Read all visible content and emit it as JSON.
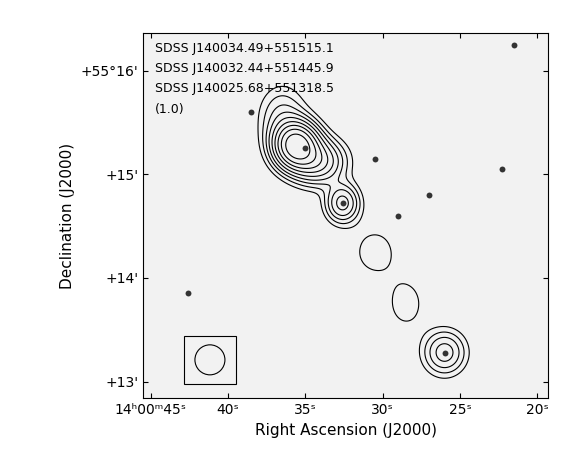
{
  "chart_data": {
    "type": "contour",
    "annotations": [
      "SDSS J140034.49+551515.1",
      "SDSS J140032.44+551445.9",
      "SDSS J140025.68+551318.5",
      "(1.0)"
    ],
    "x_label": "Right Ascension (J2000)",
    "y_label": "Declination (J2000)",
    "xlim": [
      45.5,
      19.3
    ],
    "xticks": [
      {
        "value": 45,
        "label": "14ʰ00ᵐ45ˢ"
      },
      {
        "value": 40,
        "label": "40ˢ"
      },
      {
        "value": 35,
        "label": "35ˢ"
      },
      {
        "value": 30,
        "label": "30ˢ"
      },
      {
        "value": 25,
        "label": "25ˢ"
      },
      {
        "value": 20,
        "label": "20ˢ"
      }
    ],
    "ylim": [
      12.84,
      16.36
    ],
    "yticks": [
      {
        "value": 13,
        "label": "+13'"
      },
      {
        "value": 14,
        "label": "+14'"
      },
      {
        "value": 15,
        "label": "+15'"
      },
      {
        "value": 16,
        "label": "+55°16'"
      }
    ],
    "components": [
      {
        "x": 35.6,
        "y": 15.28,
        "amp": 10,
        "sigma_x": 0.9,
        "sigma_y": 0.14
      },
      {
        "x": 34.2,
        "y": 15.12,
        "amp": 4,
        "sigma_x": 1.1,
        "sigma_y": 0.14
      },
      {
        "x": 36.5,
        "y": 15.55,
        "amp": 1.5,
        "sigma_x": 1.0,
        "sigma_y": 0.2
      },
      {
        "x": 32.6,
        "y": 14.72,
        "amp": 3.2,
        "sigma_x": 0.7,
        "sigma_y": 0.12
      },
      {
        "x": 30.5,
        "y": 14.25,
        "amp": 0.7,
        "sigma_x": 1.2,
        "sigma_y": 0.2
      },
      {
        "x": 28.5,
        "y": 13.75,
        "amp": 0.7,
        "sigma_x": 1.0,
        "sigma_y": 0.2
      },
      {
        "x": 26.0,
        "y": 13.28,
        "amp": 2.4,
        "sigma_x": 0.9,
        "sigma_y": 0.14
      }
    ],
    "levels": [
      0.5,
      0.9,
      1.4,
      2.0,
      2.8,
      3.8,
      5.0,
      6.5,
      8.5
    ],
    "stars": {
      "x": [
        30.5,
        42.6,
        35.0,
        32.6,
        26.0,
        22.3,
        27.0,
        21.5,
        38.5,
        29.0
      ],
      "y": [
        15.15,
        13.85,
        15.25,
        14.72,
        13.28,
        15.05,
        14.8,
        16.25,
        15.6,
        14.6
      ]
    },
    "color": "#000000",
    "grid": false
  }
}
